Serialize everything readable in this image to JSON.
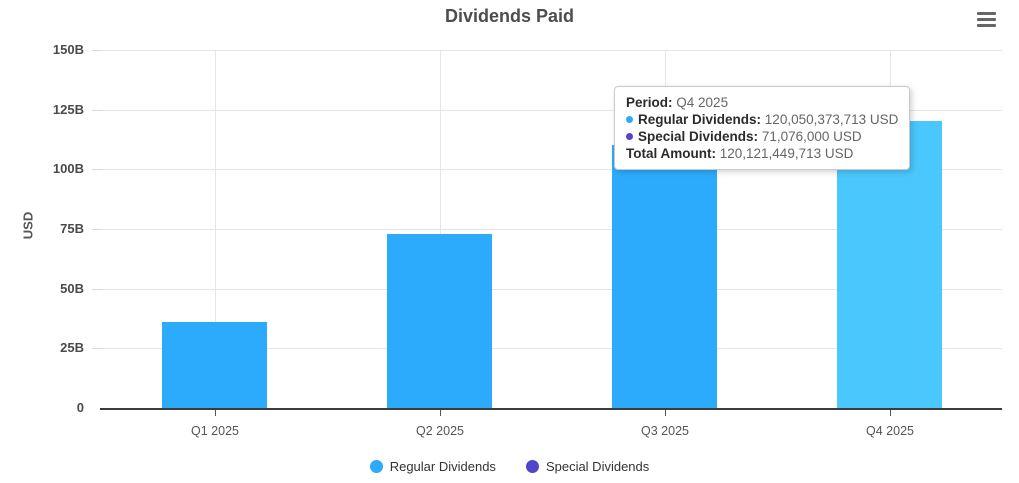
{
  "header": {
    "title": "Dividends Paid"
  },
  "y_axis": {
    "title": "USD",
    "ticks": [
      "150B",
      "125B",
      "100B",
      "75B",
      "50B",
      "25B",
      "0"
    ]
  },
  "x_axis": {
    "labels": [
      "Q1 2025",
      "Q2 2025",
      "Q3 2025",
      "Q4 2025"
    ]
  },
  "legend": {
    "items": [
      {
        "label": "Regular Dividends",
        "color": "#2caafc"
      },
      {
        "label": "Special Dividends",
        "color": "#5145c9"
      }
    ]
  },
  "tooltip": {
    "period_label": "Period:",
    "period_value": "Q4 2025",
    "regular_label": "Regular Dividends:",
    "regular_value": "120,050,373,713 USD",
    "special_label": "Special Dividends:",
    "special_value": "71,076,000 USD",
    "total_label": "Total Amount:",
    "total_value": "120,121,449,713 USD"
  },
  "colors": {
    "regular": "#2caafc",
    "regular_highlight": "#4ac7fc",
    "special": "#5145c9",
    "gridline": "#e6e6e6",
    "axis": "#3b3b3b"
  },
  "chart_data": {
    "type": "bar",
    "title": "Dividends Paid",
    "xlabel": "",
    "ylabel": "USD",
    "unit": "billions of USD",
    "categories": [
      "Q1 2025",
      "Q2 2025",
      "Q3 2025",
      "Q4 2025"
    ],
    "series": [
      {
        "name": "Regular Dividends",
        "color": "#2caafc",
        "values_billions": [
          36,
          73,
          110,
          120.05
        ]
      },
      {
        "name": "Special Dividends",
        "color": "#5145c9",
        "values_billions": [
          null,
          null,
          null,
          0.071
        ]
      }
    ],
    "exact_values_from_tooltip": {
      "period": "Q4 2025",
      "regular_dividends": "120,050,373,713 USD",
      "special_dividends": "71,076,000 USD",
      "total_amount": "120,121,449,713 USD"
    },
    "ylim_billions": [
      0,
      150
    ],
    "ytick_labels": [
      "0",
      "25B",
      "50B",
      "75B",
      "100B",
      "125B",
      "150B"
    ],
    "grid": true,
    "legend_position": "bottom",
    "highlighted_category": "Q4 2025"
  }
}
